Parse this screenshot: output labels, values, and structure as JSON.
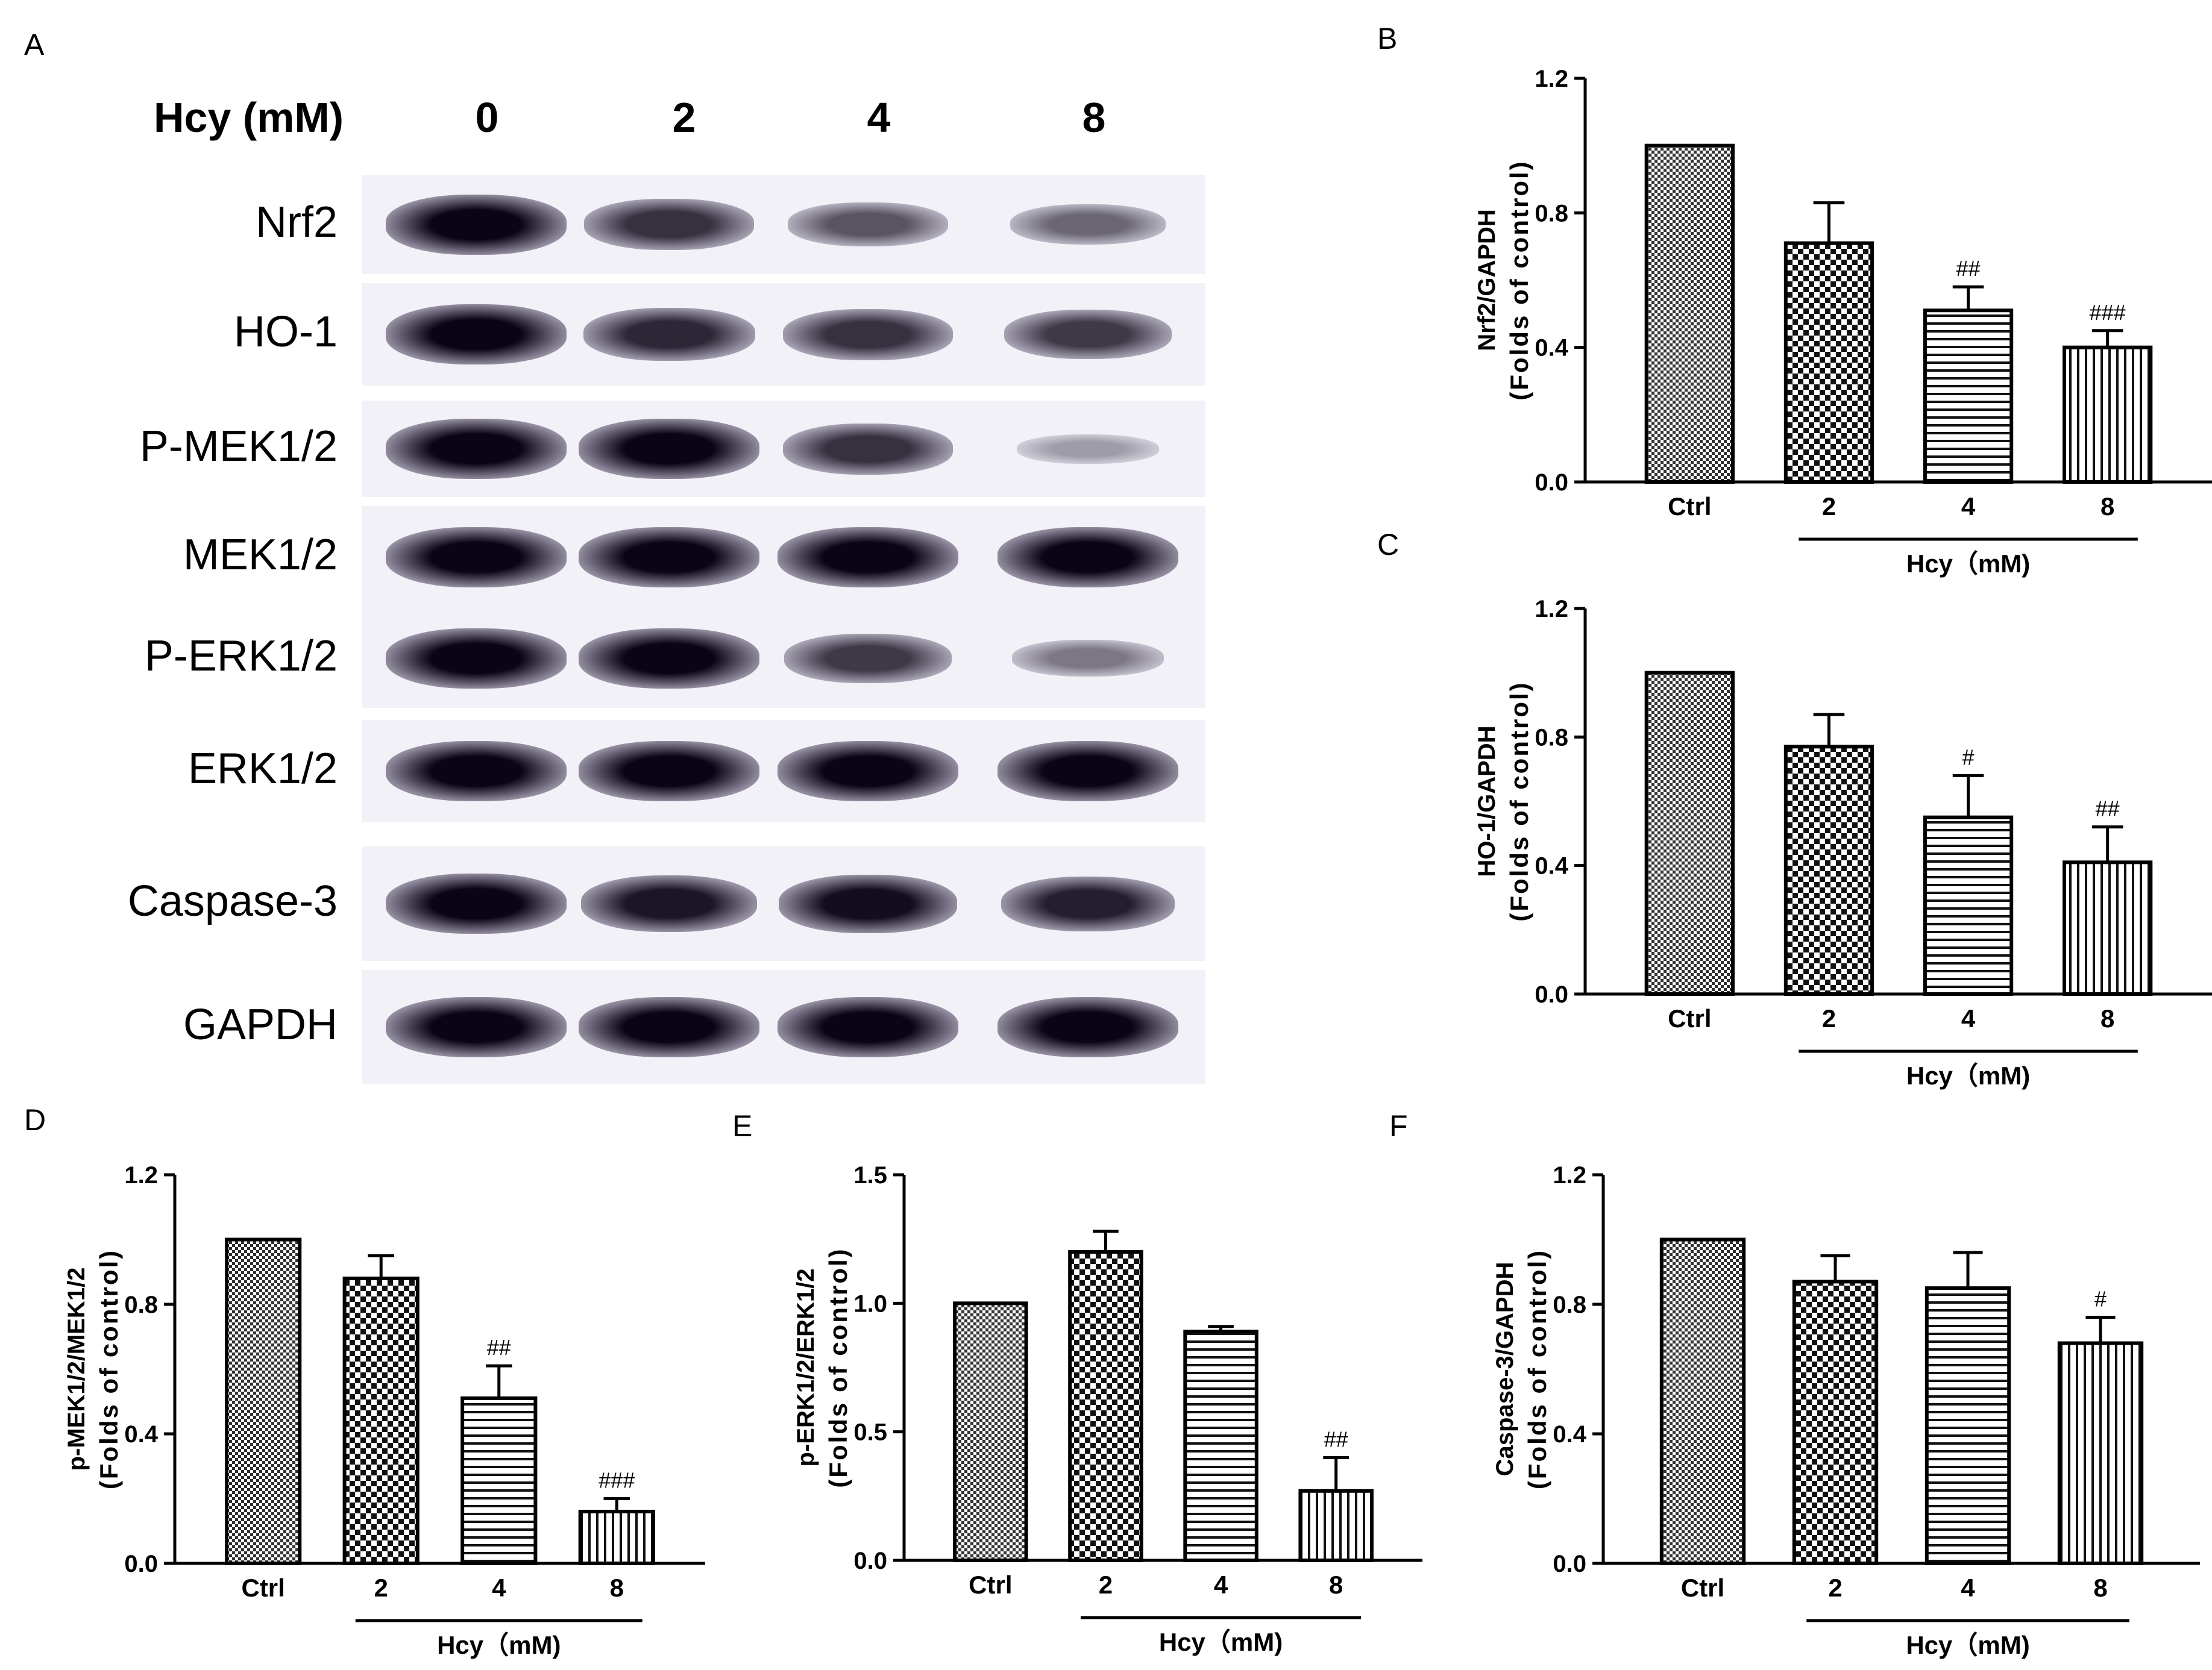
{
  "figure": {
    "panels": {
      "A": "A",
      "B": "B",
      "C": "C",
      "D": "D",
      "E": "E",
      "F": "F"
    }
  },
  "blot": {
    "header_label": "Hcy (mM)",
    "lanes": [
      "0",
      "2",
      "4",
      "8"
    ],
    "rows": [
      {
        "label": "Nrf2",
        "intensity": [
          1.0,
          0.75,
          0.55,
          0.45
        ]
      },
      {
        "label": "HO-1",
        "intensity": [
          1.0,
          0.8,
          0.75,
          0.7
        ]
      },
      {
        "label": "P-MEK1/2",
        "intensity": [
          1.0,
          1.0,
          0.75,
          0.15
        ]
      },
      {
        "label": "MEK1/2",
        "intensity": [
          1.0,
          1.0,
          1.0,
          1.0
        ]
      },
      {
        "label": "P-ERK1/2",
        "intensity": [
          1.0,
          1.0,
          0.7,
          0.35
        ]
      },
      {
        "label": "ERK1/2",
        "intensity": [
          1.0,
          1.0,
          1.0,
          1.0
        ]
      },
      {
        "label": "Caspase-3",
        "intensity": [
          1.0,
          0.9,
          0.95,
          0.85
        ]
      },
      {
        "label": "GAPDH",
        "intensity": [
          1.0,
          1.0,
          1.0,
          1.0
        ]
      }
    ]
  },
  "chart_data": [
    {
      "panel": "B",
      "type": "bar",
      "categories": [
        "Ctrl",
        "2",
        "4",
        "8"
      ],
      "values": [
        1.0,
        0.71,
        0.51,
        0.4
      ],
      "errors": [
        0,
        0.12,
        0.07,
        0.05
      ],
      "annotations": [
        "",
        "",
        "##",
        "###"
      ],
      "ylabel_line1": "Nrf2/GAPDH",
      "ylabel_line2": "(Folds of control)",
      "ylim": [
        0,
        1.2
      ],
      "yticks": [
        "0.0",
        "0.4",
        "0.8",
        "1.2"
      ],
      "group_label": "Hcy（mM)",
      "patterns": [
        "dense",
        "checker",
        "horizontal",
        "vertical"
      ]
    },
    {
      "panel": "C",
      "type": "bar",
      "categories": [
        "Ctrl",
        "2",
        "4",
        "8"
      ],
      "values": [
        1.0,
        0.77,
        0.55,
        0.41
      ],
      "errors": [
        0,
        0.1,
        0.13,
        0.11
      ],
      "annotations": [
        "",
        "",
        "#",
        "##"
      ],
      "ylabel_line1": "HO-1/GAPDH",
      "ylabel_line2": "(Folds of control)",
      "ylim": [
        0,
        1.2
      ],
      "yticks": [
        "0.0",
        "0.4",
        "0.8",
        "1.2"
      ],
      "group_label": "Hcy（mM)",
      "patterns": [
        "dense",
        "checker",
        "horizontal",
        "vertical"
      ]
    },
    {
      "panel": "D",
      "type": "bar",
      "categories": [
        "Ctrl",
        "2",
        "4",
        "8"
      ],
      "values": [
        1.0,
        0.88,
        0.51,
        0.16
      ],
      "errors": [
        0,
        0.07,
        0.1,
        0.04
      ],
      "annotations": [
        "",
        "",
        "##",
        "###"
      ],
      "ylabel_line1": "p-MEK1/2/MEK1/2",
      "ylabel_line2": "(Folds of control)",
      "ylim": [
        0,
        1.2
      ],
      "yticks": [
        "0.0",
        "0.4",
        "0.8",
        "1.2"
      ],
      "group_label": "Hcy（mM)",
      "patterns": [
        "dense",
        "checker",
        "horizontal",
        "vertical"
      ]
    },
    {
      "panel": "E",
      "type": "bar",
      "categories": [
        "Ctrl",
        "2",
        "4",
        "8"
      ],
      "values": [
        1.0,
        1.2,
        0.89,
        0.27
      ],
      "errors": [
        0,
        0.08,
        0.02,
        0.13
      ],
      "annotations": [
        "",
        "",
        "",
        "##"
      ],
      "ylabel_line1": "p-ERK1/2/ERK1/2",
      "ylabel_line2": "(Folds of control)",
      "ylim": [
        0,
        1.5
      ],
      "yticks": [
        "0.0",
        "0.5",
        "1.0",
        "1.5"
      ],
      "group_label": "Hcy（mM)",
      "patterns": [
        "dense",
        "checker",
        "horizontal",
        "vertical"
      ]
    },
    {
      "panel": "F",
      "type": "bar",
      "categories": [
        "Ctrl",
        "2",
        "4",
        "8"
      ],
      "values": [
        1.0,
        0.87,
        0.85,
        0.68
      ],
      "errors": [
        0,
        0.08,
        0.11,
        0.08
      ],
      "annotations": [
        "",
        "",
        "",
        "#"
      ],
      "ylabel_line1": "Caspase-3/GAPDH",
      "ylabel_line2": "(Folds of control)",
      "ylim": [
        0,
        1.2
      ],
      "yticks": [
        "0.0",
        "0.4",
        "0.8",
        "1.2"
      ],
      "group_label": "Hcy（mM)",
      "patterns": [
        "dense",
        "checker",
        "horizontal",
        "vertical"
      ]
    }
  ]
}
